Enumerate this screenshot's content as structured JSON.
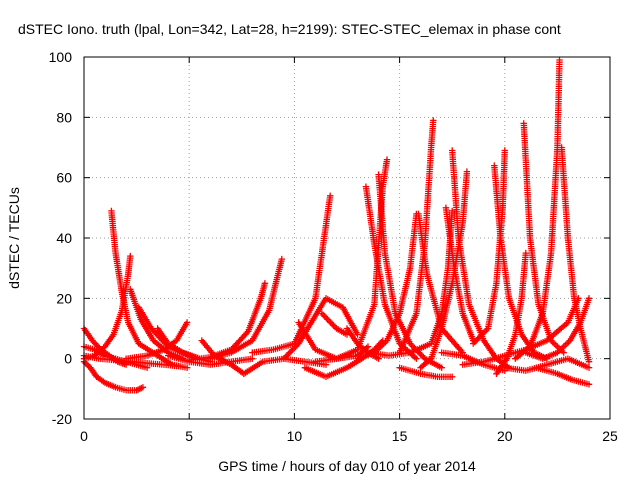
{
  "chart_data": {
    "type": "scatter",
    "title": "dSTEC Iono. truth (lpal, Lon=342, Lat=28, h=2199): STEC-STEC_elemax in phase cont",
    "xlabel": "GPS time / hours of day 010 of year 2014",
    "ylabel": "dSTEC  / TECUs",
    "xlim": [
      0,
      25
    ],
    "ylim": [
      -20,
      100
    ],
    "x_ticks": [
      "0",
      "5",
      "10",
      "15",
      "20",
      "25"
    ],
    "y_ticks": [
      "-20",
      "0",
      "20",
      "40",
      "60",
      "80",
      "100"
    ],
    "grid": true,
    "legend": "none",
    "marker": "plus",
    "color": "#ff0000",
    "series": [
      {
        "x": [
          0.0,
          0.3,
          0.6,
          1.0,
          1.5,
          2.0,
          2.5,
          2.8
        ],
        "y": [
          -1,
          -3,
          -6,
          -8,
          -9.5,
          -10.5,
          -10.5,
          -9.5
        ]
      },
      {
        "x": [
          0.0,
          0.4,
          0.8,
          1.2,
          1.6,
          2.0
        ],
        "y": [
          10,
          6,
          3,
          1,
          -1,
          -2
        ]
      },
      {
        "x": [
          0.0,
          0.5,
          1.0,
          1.5,
          2.0,
          2.5,
          3.0
        ],
        "y": [
          4,
          3,
          1,
          0,
          -1,
          -2,
          -3
        ]
      },
      {
        "x": [
          0.0,
          0.7,
          1.5,
          2.3,
          3.0,
          3.8,
          4.5
        ],
        "y": [
          1,
          0,
          -0.5,
          -1,
          -1.5,
          -2,
          -2.5
        ]
      },
      {
        "x": [
          1.3,
          1.5,
          1.8,
          2.1,
          2.6,
          3.5,
          4.2,
          4.9
        ],
        "y": [
          49,
          35,
          22,
          12,
          5,
          1,
          -2,
          -3
        ]
      },
      {
        "x": [
          0.0,
          0.5,
          1.0,
          1.4,
          1.8,
          2.1,
          2.2
        ],
        "y": [
          0,
          1,
          4,
          8,
          16,
          28,
          34
        ]
      },
      {
        "x": [
          2.2,
          2.7,
          3.3,
          4.0,
          4.7
        ],
        "y": [
          23,
          13,
          6,
          2,
          0
        ]
      },
      {
        "x": [
          2.6,
          3.2,
          4.0,
          5.0,
          6.0
        ],
        "y": [
          17,
          10,
          4,
          1,
          -1
        ]
      },
      {
        "x": [
          3.5,
          4.0,
          4.7,
          5.5
        ],
        "y": [
          10,
          5,
          2,
          0
        ]
      },
      {
        "x": [
          2.0,
          3.0,
          3.8,
          4.4,
          4.9
        ],
        "y": [
          0,
          1,
          3,
          6,
          12
        ]
      },
      {
        "x": [
          5.6,
          6.2,
          7.0,
          7.6
        ],
        "y": [
          6,
          1,
          -2,
          -5
        ]
      },
      {
        "x": [
          4.0,
          5.0,
          6.0,
          7.0,
          8.0
        ],
        "y": [
          1,
          -1,
          -2,
          -1,
          0
        ]
      },
      {
        "x": [
          5.0,
          6.0,
          7.0,
          7.8,
          8.4,
          8.6
        ],
        "y": [
          -0.5,
          0.5,
          3,
          9,
          20,
          25
        ]
      },
      {
        "x": [
          6.0,
          7.0,
          8.0,
          8.8,
          9.4
        ],
        "y": [
          0,
          2,
          6,
          16,
          33
        ]
      },
      {
        "x": [
          7.6,
          8.5,
          9.5,
          10.5,
          11.5
        ],
        "y": [
          -5,
          -1,
          0,
          -1,
          -2
        ]
      },
      {
        "x": [
          8.0,
          9.0,
          10.0,
          11.0,
          11.7
        ],
        "y": [
          2,
          3,
          5,
          20,
          54
        ]
      },
      {
        "x": [
          9.5,
          10.2,
          10.8,
          11.5,
          12.3,
          13.0
        ],
        "y": [
          0,
          5,
          12,
          20,
          17,
          8
        ]
      },
      {
        "x": [
          10.2,
          11.0,
          12.0,
          13.0,
          13.5
        ],
        "y": [
          12,
          3,
          0,
          1,
          4
        ]
      },
      {
        "x": [
          10.5,
          11.5,
          12.5,
          13.2,
          13.8,
          14.2
        ],
        "y": [
          -3,
          -6,
          -3,
          0,
          3,
          6
        ]
      },
      {
        "x": [
          11.3,
          12.0,
          12.5
        ],
        "y": [
          15,
          10,
          8
        ]
      },
      {
        "x": [
          11.0,
          12.0,
          13.0,
          13.8,
          14.2,
          14.4
        ],
        "y": [
          -1,
          0,
          3,
          18,
          57,
          66
        ]
      },
      {
        "x": [
          13.4,
          13.8,
          14.3,
          15.0,
          15.8
        ],
        "y": [
          57,
          38,
          18,
          5,
          0
        ]
      },
      {
        "x": [
          12.5,
          13.0,
          13.5,
          14.0
        ],
        "y": [
          10,
          5,
          2,
          0
        ]
      },
      {
        "x": [
          13.0,
          13.8,
          14.4,
          15.0,
          15.5,
          15.8
        ],
        "y": [
          0,
          2,
          6,
          15,
          30,
          48
        ]
      },
      {
        "x": [
          14.0,
          14.3,
          14.8,
          15.5,
          16.2,
          17.0
        ],
        "y": [
          61,
          35,
          15,
          5,
          0,
          -3
        ]
      },
      {
        "x": [
          15.9,
          16.3,
          17.0,
          18.0
        ],
        "y": [
          48,
          28,
          10,
          2
        ]
      },
      {
        "x": [
          15.0,
          15.8,
          16.2,
          16.5,
          16.6
        ],
        "y": [
          2,
          15,
          38,
          70,
          79
        ]
      },
      {
        "x": [
          13.5,
          14.5,
          15.5,
          16.5,
          17.0,
          17.3,
          17.5
        ],
        "y": [
          2,
          1,
          2,
          5,
          15,
          30,
          49
        ]
      },
      {
        "x": [
          17.5,
          17.8,
          18.3,
          19.0,
          19.6,
          20.2
        ],
        "y": [
          69,
          40,
          18,
          6,
          0,
          -3
        ]
      },
      {
        "x": [
          16.0,
          16.5,
          17.0,
          17.5,
          18.0,
          18.2
        ],
        "y": [
          -3,
          0,
          10,
          25,
          45,
          62
        ]
      },
      {
        "x": [
          17.2,
          17.6,
          18.0,
          18.5
        ],
        "y": [
          50,
          30,
          15,
          6
        ]
      },
      {
        "x": [
          15.0,
          16.0,
          16.8,
          17.5
        ],
        "y": [
          -3,
          -5,
          -6,
          -6
        ]
      },
      {
        "x": [
          19.5,
          19.8,
          20.2,
          20.8,
          21.4,
          22.0
        ],
        "y": [
          64,
          40,
          20,
          8,
          2,
          0
        ]
      },
      {
        "x": [
          18.5,
          19.2,
          19.6,
          19.9,
          20.0
        ],
        "y": [
          5,
          10,
          25,
          50,
          69
        ]
      },
      {
        "x": [
          19.6,
          20.1,
          20.5,
          20.8,
          21.0
        ],
        "y": [
          -5,
          0,
          8,
          20,
          35
        ]
      },
      {
        "x": [
          20.9,
          21.2,
          21.6,
          22.2,
          22.8
        ],
        "y": [
          78,
          40,
          18,
          6,
          2
        ]
      },
      {
        "x": [
          20.5,
          21.2,
          21.8,
          22.2,
          22.5,
          22.6
        ],
        "y": [
          0,
          4,
          15,
          35,
          70,
          99
        ]
      },
      {
        "x": [
          22.7,
          23.0,
          23.3,
          23.6,
          24.0
        ],
        "y": [
          70,
          40,
          20,
          10,
          -1
        ]
      },
      {
        "x": [
          21.0,
          21.8,
          22.5,
          23.1,
          23.6,
          24.0
        ],
        "y": [
          2,
          0,
          2,
          6,
          12,
          20
        ]
      },
      {
        "x": [
          20.0,
          21.0,
          22.0,
          23.0,
          24.0
        ],
        "y": [
          -3,
          -4,
          -2,
          0,
          -3
        ]
      },
      {
        "x": [
          21.5,
          22.5,
          23.2,
          24.0
        ],
        "y": [
          -3,
          -5,
          -7,
          -8.5
        ]
      },
      {
        "x": [
          18.0,
          19.0,
          20.0,
          21.0,
          22.0,
          23.0,
          23.5
        ],
        "y": [
          -2,
          -1,
          1,
          3,
          6,
          12,
          20
        ]
      },
      {
        "x": [
          17.0,
          18.0,
          19.0,
          20.0
        ],
        "y": [
          2,
          1,
          -2,
          -4
        ]
      }
    ]
  }
}
